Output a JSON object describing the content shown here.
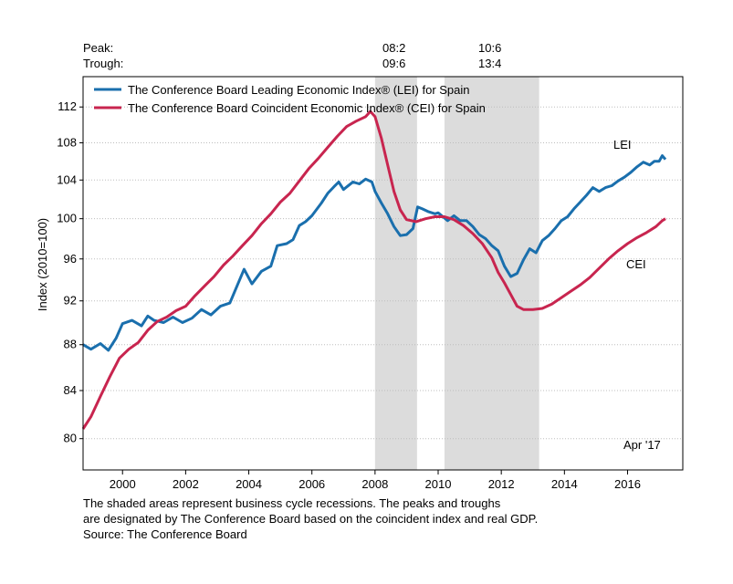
{
  "header": {
    "peak_label": "Peak:",
    "trough_label": "Trough:",
    "recessions": [
      {
        "peak": "08:2",
        "trough": "09:6"
      },
      {
        "peak": "10:6",
        "trough": "13:4"
      }
    ]
  },
  "chart_data": {
    "type": "line",
    "ylabel": "Index (2010=100)",
    "y_scale": "log",
    "ylim": [
      77.5,
      115.5
    ],
    "xlim": [
      1998.75,
      2017.75
    ],
    "yticks": [
      80,
      84,
      88,
      92,
      96,
      100,
      104,
      108,
      112
    ],
    "xticks": [
      2000,
      2002,
      2004,
      2006,
      2008,
      2010,
      2012,
      2014,
      2016
    ],
    "grid": "horizontal dashed",
    "legend_position": "top-left",
    "date_stamp": "Apr '17",
    "recession_bands": [
      [
        2008.0,
        2009.33
      ],
      [
        2010.2,
        2013.2
      ]
    ],
    "series": [
      {
        "name": "The Conference Board Leading Economic Index® (LEI) for Spain",
        "short_label": "LEI",
        "color": "#1a6fad",
        "points": [
          [
            1998.75,
            88.0
          ],
          [
            1999.0,
            87.6
          ],
          [
            1999.3,
            88.1
          ],
          [
            1999.55,
            87.5
          ],
          [
            1999.8,
            88.6
          ],
          [
            2000.0,
            89.9
          ],
          [
            2000.3,
            90.2
          ],
          [
            2000.6,
            89.7
          ],
          [
            2000.8,
            90.6
          ],
          [
            2001.0,
            90.2
          ],
          [
            2001.3,
            90.0
          ],
          [
            2001.6,
            90.5
          ],
          [
            2001.9,
            90.0
          ],
          [
            2002.2,
            90.4
          ],
          [
            2002.5,
            91.2
          ],
          [
            2002.8,
            90.7
          ],
          [
            2003.1,
            91.5
          ],
          [
            2003.4,
            91.8
          ],
          [
            2003.6,
            93.2
          ],
          [
            2003.85,
            95.0
          ],
          [
            2004.1,
            93.6
          ],
          [
            2004.4,
            94.8
          ],
          [
            2004.7,
            95.3
          ],
          [
            2004.9,
            97.3
          ],
          [
            2005.2,
            97.5
          ],
          [
            2005.4,
            97.9
          ],
          [
            2005.6,
            99.3
          ],
          [
            2005.8,
            99.7
          ],
          [
            2006.0,
            100.3
          ],
          [
            2006.3,
            101.6
          ],
          [
            2006.5,
            102.6
          ],
          [
            2006.7,
            103.3
          ],
          [
            2006.85,
            103.8
          ],
          [
            2007.0,
            103.0
          ],
          [
            2007.3,
            103.8
          ],
          [
            2007.5,
            103.6
          ],
          [
            2007.7,
            104.1
          ],
          [
            2007.9,
            103.8
          ],
          [
            2008.0,
            102.8
          ],
          [
            2008.2,
            101.6
          ],
          [
            2008.4,
            100.5
          ],
          [
            2008.6,
            99.2
          ],
          [
            2008.8,
            98.3
          ],
          [
            2009.0,
            98.4
          ],
          [
            2009.2,
            99.0
          ],
          [
            2009.35,
            101.2
          ],
          [
            2009.5,
            101.0
          ],
          [
            2009.7,
            100.7
          ],
          [
            2009.9,
            100.5
          ],
          [
            2010.0,
            100.6
          ],
          [
            2010.15,
            100.2
          ],
          [
            2010.3,
            99.8
          ],
          [
            2010.5,
            100.3
          ],
          [
            2010.7,
            99.8
          ],
          [
            2010.9,
            99.8
          ],
          [
            2011.1,
            99.2
          ],
          [
            2011.3,
            98.4
          ],
          [
            2011.5,
            98.0
          ],
          [
            2011.7,
            97.3
          ],
          [
            2011.9,
            96.8
          ],
          [
            2012.1,
            95.3
          ],
          [
            2012.3,
            94.3
          ],
          [
            2012.5,
            94.6
          ],
          [
            2012.7,
            95.9
          ],
          [
            2012.9,
            97.0
          ],
          [
            2013.1,
            96.6
          ],
          [
            2013.3,
            97.8
          ],
          [
            2013.5,
            98.3
          ],
          [
            2013.7,
            99.0
          ],
          [
            2013.9,
            99.8
          ],
          [
            2014.1,
            100.2
          ],
          [
            2014.3,
            101.0
          ],
          [
            2014.5,
            101.7
          ],
          [
            2014.7,
            102.4
          ],
          [
            2014.9,
            103.2
          ],
          [
            2015.1,
            102.8
          ],
          [
            2015.3,
            103.2
          ],
          [
            2015.5,
            103.4
          ],
          [
            2015.7,
            103.9
          ],
          [
            2015.9,
            104.3
          ],
          [
            2016.1,
            104.8
          ],
          [
            2016.3,
            105.4
          ],
          [
            2016.5,
            105.9
          ],
          [
            2016.7,
            105.6
          ],
          [
            2016.85,
            106.0
          ],
          [
            2017.0,
            106.0
          ],
          [
            2017.1,
            106.6
          ],
          [
            2017.2,
            106.2
          ]
        ]
      },
      {
        "name": "The Conference Board Coincident Economic Index® (CEI) for Spain",
        "short_label": "CEI",
        "color": "#c8254f",
        "points": [
          [
            1998.75,
            80.8
          ],
          [
            1999.0,
            81.8
          ],
          [
            1999.3,
            83.5
          ],
          [
            1999.6,
            85.2
          ],
          [
            1999.9,
            86.8
          ],
          [
            2000.2,
            87.6
          ],
          [
            2000.5,
            88.2
          ],
          [
            2000.8,
            89.3
          ],
          [
            2001.1,
            90.1
          ],
          [
            2001.4,
            90.5
          ],
          [
            2001.7,
            91.1
          ],
          [
            2002.0,
            91.5
          ],
          [
            2002.3,
            92.5
          ],
          [
            2002.6,
            93.4
          ],
          [
            2002.9,
            94.3
          ],
          [
            2003.2,
            95.4
          ],
          [
            2003.5,
            96.3
          ],
          [
            2003.8,
            97.3
          ],
          [
            2004.1,
            98.3
          ],
          [
            2004.4,
            99.5
          ],
          [
            2004.7,
            100.5
          ],
          [
            2005.0,
            101.7
          ],
          [
            2005.3,
            102.6
          ],
          [
            2005.6,
            103.9
          ],
          [
            2005.9,
            105.2
          ],
          [
            2006.2,
            106.3
          ],
          [
            2006.5,
            107.5
          ],
          [
            2006.8,
            108.7
          ],
          [
            2007.1,
            109.8
          ],
          [
            2007.4,
            110.4
          ],
          [
            2007.7,
            110.9
          ],
          [
            2007.85,
            111.5
          ],
          [
            2008.0,
            110.9
          ],
          [
            2008.2,
            108.5
          ],
          [
            2008.4,
            105.6
          ],
          [
            2008.6,
            102.8
          ],
          [
            2008.8,
            100.9
          ],
          [
            2009.0,
            99.9
          ],
          [
            2009.3,
            99.7
          ],
          [
            2009.6,
            100.0
          ],
          [
            2009.9,
            100.2
          ],
          [
            2010.2,
            100.2
          ],
          [
            2010.5,
            99.9
          ],
          [
            2010.8,
            99.3
          ],
          [
            2011.1,
            98.5
          ],
          [
            2011.4,
            97.5
          ],
          [
            2011.7,
            96.1
          ],
          [
            2011.9,
            94.7
          ],
          [
            2012.1,
            93.7
          ],
          [
            2012.3,
            92.6
          ],
          [
            2012.5,
            91.5
          ],
          [
            2012.7,
            91.2
          ],
          [
            2013.0,
            91.2
          ],
          [
            2013.3,
            91.3
          ],
          [
            2013.6,
            91.7
          ],
          [
            2013.9,
            92.3
          ],
          [
            2014.2,
            92.9
          ],
          [
            2014.5,
            93.5
          ],
          [
            2014.8,
            94.2
          ],
          [
            2015.1,
            95.1
          ],
          [
            2015.4,
            96.0
          ],
          [
            2015.7,
            96.8
          ],
          [
            2016.0,
            97.5
          ],
          [
            2016.3,
            98.1
          ],
          [
            2016.6,
            98.6
          ],
          [
            2016.9,
            99.2
          ],
          [
            2017.1,
            99.8
          ],
          [
            2017.2,
            100.0
          ]
        ]
      }
    ]
  },
  "footnote": {
    "line1": "The shaded areas represent business cycle recessions. The peaks and troughs",
    "line2": "are designated by The Conference Board based on the coincident index and real GDP.",
    "line3": "Source: The Conference Board"
  }
}
